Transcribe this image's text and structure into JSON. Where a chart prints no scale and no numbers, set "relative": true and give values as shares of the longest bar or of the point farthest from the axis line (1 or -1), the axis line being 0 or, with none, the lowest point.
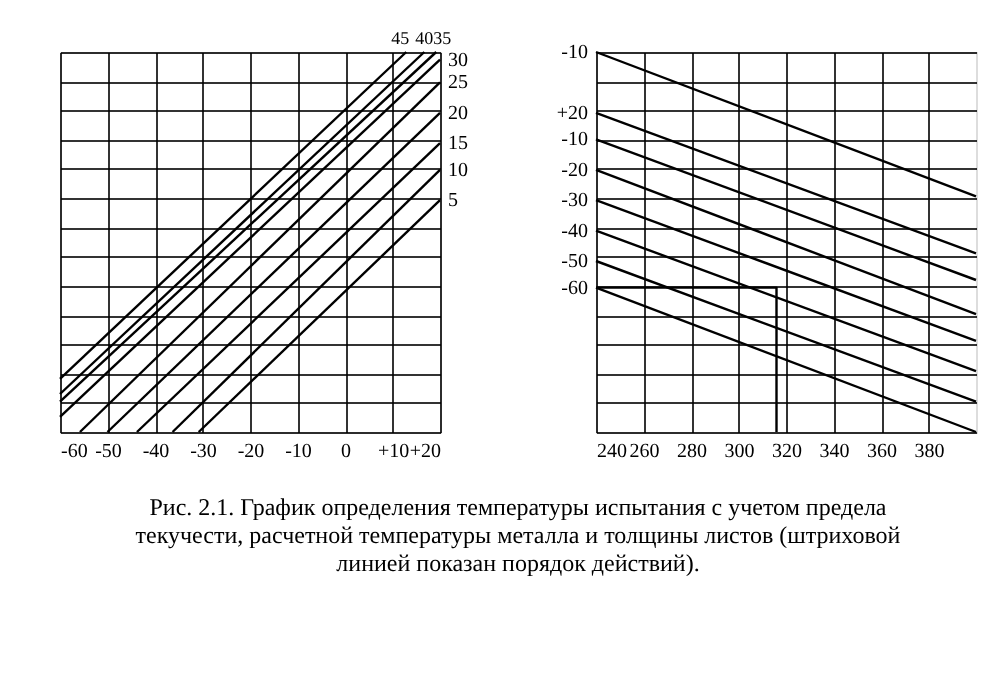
{
  "chart_data": [
    {
      "type": "line",
      "relative": true,
      "xlim": [
        -60,
        20
      ],
      "xticks": [
        -60,
        -50,
        -40,
        -30,
        -20,
        -10,
        0,
        {
          "value": 10,
          "label": "+10"
        },
        {
          "value": 20,
          "label": "+20"
        }
      ],
      "grid": true,
      "tick_labels": "x",
      "legend": false,
      "line_style": "solid",
      "annotations": [
        "Рис. 2.1. График  определения температуры испытания с учетом предела текучести, расчетной температуры металла и толщины листов (штриховой линией показан порядок действий)."
      ],
      "series": [
        {
          "name": "45",
          "color": "#000000",
          "x": [
            -60,
            12.9
          ],
          "values": [
            0.14,
            1
          ]
        },
        {
          "name": "40",
          "color": "#000000",
          "x": [
            -60,
            16.7
          ],
          "values": [
            0.1,
            1
          ]
        },
        {
          "name": "35",
          "color": "#000000",
          "x": [
            -60,
            19.2
          ],
          "values": [
            0.08,
            1
          ]
        },
        {
          "name": "30",
          "color": "#000000",
          "x": [
            -60,
            20
          ],
          "values": [
            0.04,
            0.98
          ]
        },
        {
          "name": "25",
          "color": "#000000",
          "x": [
            -55.8,
            20
          ],
          "values": [
            0,
            0.92
          ]
        },
        {
          "name": "20",
          "color": "#000000",
          "x": [
            -50,
            20
          ],
          "values": [
            0,
            0.84
          ]
        },
        {
          "name": "15",
          "color": "#000000",
          "x": [
            -43.8,
            20
          ],
          "values": [
            0,
            0.76
          ]
        },
        {
          "name": "10",
          "color": "#000000",
          "x": [
            -36.3,
            20
          ],
          "values": [
            0,
            0.69
          ]
        },
        {
          "name": "5",
          "color": "#000000",
          "x": [
            -30.8,
            20
          ],
          "values": [
            0,
            0.61
          ]
        }
      ]
    },
    {
      "type": "line",
      "relative": true,
      "xlim": [
        240,
        400
      ],
      "xticks": [
        240,
        260,
        280,
        300,
        320,
        340,
        360,
        380
      ],
      "grid": true,
      "tick_labels": "x",
      "legend": false,
      "line_style": "solid",
      "series": [
        {
          "name": "-10",
          "color": "#000000",
          "x": [
            240,
            400
          ],
          "values": [
            1,
            0.62
          ]
        },
        {
          "name": "+20",
          "color": "#000000",
          "x": [
            240,
            400
          ],
          "values": [
            0.84,
            0.47
          ]
        },
        {
          "name": "-10",
          "color": "#000000",
          "x": [
            240,
            400
          ],
          "values": [
            0.77,
            0.4
          ]
        },
        {
          "name": "-20",
          "color": "#000000",
          "x": [
            240,
            400
          ],
          "values": [
            0.69,
            0.31
          ]
        },
        {
          "name": "-30",
          "color": "#000000",
          "x": [
            240,
            400
          ],
          "values": [
            0.61,
            0.24
          ]
        },
        {
          "name": "-40",
          "color": "#000000",
          "x": [
            240,
            400
          ],
          "values": [
            0.53,
            0.16
          ]
        },
        {
          "name": "-50",
          "color": "#000000",
          "x": [
            240,
            400
          ],
          "values": [
            0.45,
            0.08
          ]
        },
        {
          "name": "-60",
          "color": "#000000",
          "x": [
            240,
            400
          ],
          "values": [
            0.38,
            0
          ]
        },
        {
          "color": "#000000",
          "x": [
            240,
            316,
            316
          ],
          "values": [
            0.38,
            0.38,
            0
          ]
        }
      ]
    }
  ]
}
